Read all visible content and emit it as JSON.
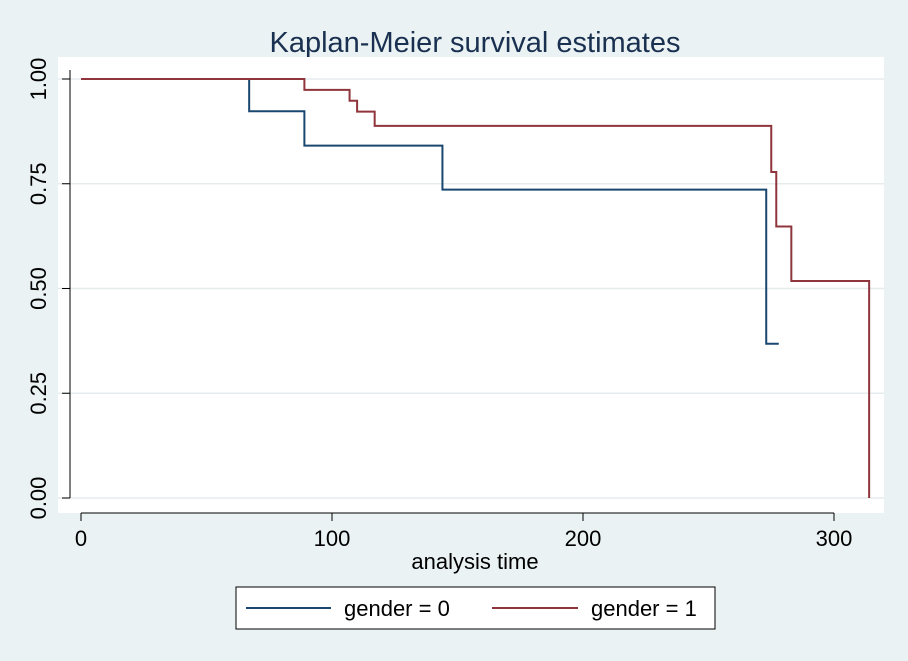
{
  "chart_data": {
    "type": "line",
    "subtype": "step",
    "title": "Kaplan-Meier survival estimates",
    "xlabel": "analysis time",
    "ylabel": "",
    "xlim": [
      -5,
      318
    ],
    "ylim": [
      -0.04,
      1.04
    ],
    "xticks": [
      0,
      100,
      200,
      300
    ],
    "xtick_labels": [
      "0",
      "100",
      "200",
      "300"
    ],
    "yticks": [
      0,
      0.25,
      0.5,
      0.75,
      1.0
    ],
    "ytick_labels": [
      "0.00",
      "0.25",
      "0.50",
      "0.75",
      "1.00"
    ],
    "grid": "horizontal",
    "legend_position": "bottom",
    "background": "#eaf2f3",
    "plot_background": "#ffffff",
    "series": [
      {
        "name": "gender = 0",
        "color": "#1a476f",
        "x": [
          0,
          67,
          89,
          144,
          273,
          278
        ],
        "y": [
          1.0,
          0.923,
          0.841,
          0.736,
          0.368,
          0.368
        ]
      },
      {
        "name": "gender = 1",
        "color": "#90353b",
        "x": [
          0,
          89,
          107,
          110,
          111,
          117,
          275,
          276,
          277,
          283,
          314
        ],
        "y": [
          1.0,
          0.974,
          0.948,
          0.922,
          0.922,
          0.888,
          0.778,
          0.778,
          0.648,
          0.518,
          0.0
        ]
      }
    ]
  }
}
